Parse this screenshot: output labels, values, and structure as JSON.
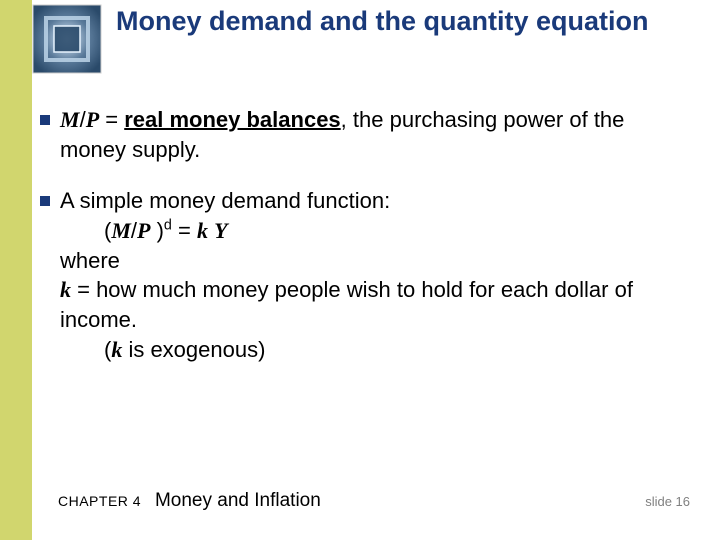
{
  "colors": {
    "left_bar": "#d1d66e",
    "title_color": "#1a3a7a",
    "bullet_square": "#1a3a7a",
    "icon_gradient_outer": "#5a7a9a",
    "icon_gradient_inner": "#2a4a6a",
    "icon_center_light": "#dff0ff",
    "icon_border": "#e8e8e8",
    "slide_num_color": "#808080"
  },
  "title": "Money demand and the quantity equation",
  "bullets": [
    {
      "prefix_html": "<span class='ital bold'>M</span>/<span class='ital bold'>P</span> = ",
      "strong_underlined": "real money balances",
      "tail": ", the purchasing power of the money supply."
    },
    {
      "line1": "A simple money demand function:",
      "equation_html": "(<span class='ital bold'>M</span>/<span class='ital bold'>P</span> )<span class='sup'>d</span> = <span class='ital bold'>k</span> <span class='ital bold'>Y</span>",
      "where_label": "where",
      "k_def_html": "<span class='ital bold'>k</span> = how much money people wish to hold for each dollar of income.",
      "k_note_html": "(<span class='ital bold'>k</span> is exogenous)"
    }
  ],
  "footer": {
    "chapter_label": "CHAPTER 4",
    "chapter_title": "Money and Inflation",
    "slide_label": "slide 16"
  }
}
